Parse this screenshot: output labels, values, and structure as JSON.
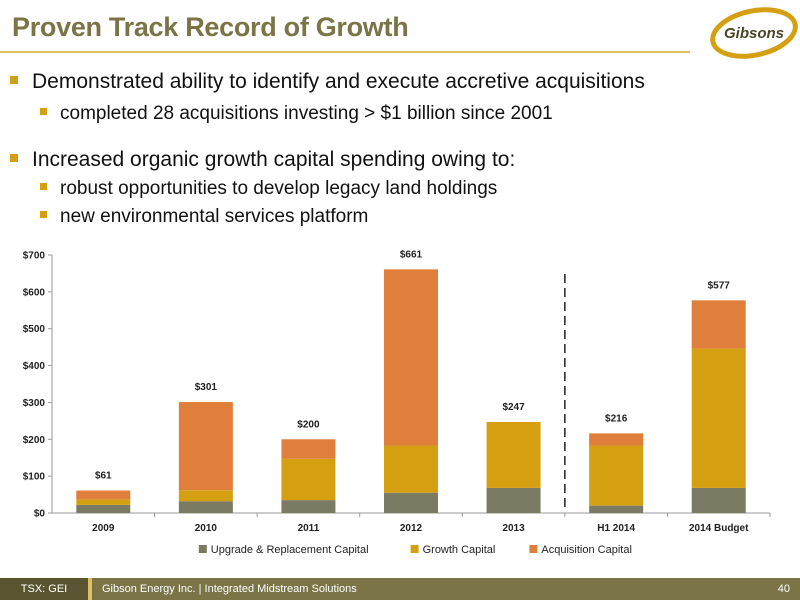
{
  "slide": {
    "title": "Proven Track Record of Growth",
    "logo_text": "Gibsons"
  },
  "bullets": [
    {
      "level": 1,
      "text": "Demonstrated ability to identify and execute accretive acquisitions"
    },
    {
      "level": 2,
      "text": "completed 28 acquisitions investing > $1 billion since 2001"
    },
    {
      "level": 1,
      "text": "Increased organic growth capital spending owing to:"
    },
    {
      "level": 2,
      "text": "robust opportunities to develop legacy land holdings"
    },
    {
      "level": 2,
      "text": "new environmental services platform"
    }
  ],
  "chart_data": {
    "type": "bar",
    "stacked": true,
    "categories": [
      "2009",
      "2010",
      "2011",
      "2012",
      "2013",
      "H1 2014",
      "2014 Budget"
    ],
    "series": [
      {
        "name": "Upgrade & Replacement Capital",
        "color": "#7b7b63",
        "values": [
          22,
          32,
          35,
          55,
          68,
          20,
          68
        ]
      },
      {
        "name": "Growth Capital",
        "color": "#d4a012",
        "values": [
          15,
          30,
          112,
          128,
          179,
          163,
          378
        ]
      },
      {
        "name": "Acquisition Capital",
        "color": "#e07e3c",
        "values": [
          24,
          239,
          53,
          478,
          0,
          33,
          131
        ]
      }
    ],
    "totals_labels": [
      "$61",
      "$301",
      "$200",
      "$661",
      "$247",
      "$216",
      "$577"
    ],
    "y_ticks": [
      "$0",
      "$100",
      "$200",
      "$300",
      "$400",
      "$500",
      "$600",
      "$700"
    ],
    "ylim": [
      0,
      700
    ],
    "divider_after_category": "2013",
    "legend_position": "bottom"
  },
  "footer": {
    "ticker": "TSX: GEI",
    "company": "Gibson Energy Inc.   |   Integrated Midstream Solutions",
    "page": "40"
  }
}
